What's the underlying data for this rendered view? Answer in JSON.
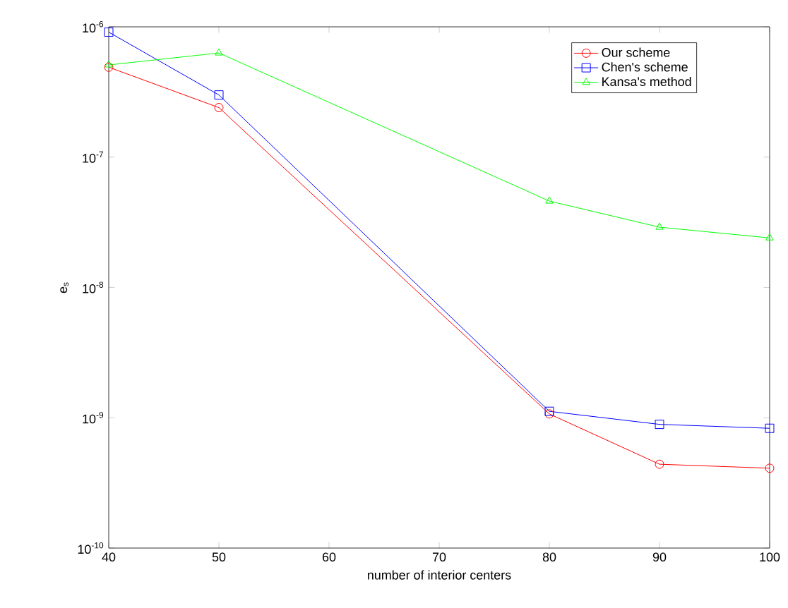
{
  "chart_data": {
    "type": "line",
    "xlabel": "number of interior centers",
    "ylabel": "e$_{s}$",
    "log": "y",
    "x": [
      40,
      50,
      80,
      90,
      100
    ],
    "xlim": [
      40,
      100
    ],
    "xticks": [
      40,
      50,
      60,
      70,
      80,
      90,
      100
    ],
    "ylim": [
      1e-10,
      1e-06
    ],
    "yticks": [
      {
        "value": 1e-10,
        "label": "10$^{-10}$"
      },
      {
        "value": 1e-09,
        "label": "10$^{-9}$"
      },
      {
        "value": 1e-08,
        "label": "10$^{-8}$"
      },
      {
        "value": 1e-07,
        "label": "10$^{-7}$"
      },
      {
        "value": 1e-06,
        "label": "10$^{-6}$"
      }
    ],
    "grid": false,
    "legend": "top right",
    "series": [
      {
        "name": "Our scheme",
        "color": "#ff0000",
        "marker": "circle",
        "values": [
          4.9e-07,
          2.4e-07,
          1.07e-09,
          4.4e-10,
          4.1e-10
        ]
      },
      {
        "name": "Chen's scheme",
        "color": "#0000ff",
        "marker": "square",
        "values": [
          9.1e-07,
          3e-07,
          1.12e-09,
          8.9e-10,
          8.3e-10
        ]
      },
      {
        "name": "Kansa's method",
        "color": "#00ff00",
        "marker": "triangle",
        "values": [
          5.1e-07,
          6.3e-07,
          4.6e-08,
          2.9e-08,
          2.4e-08
        ]
      }
    ]
  }
}
